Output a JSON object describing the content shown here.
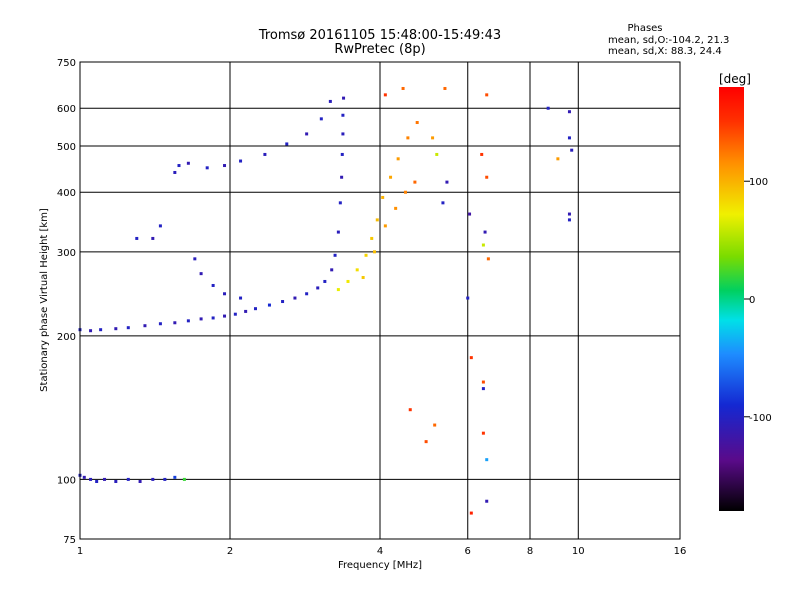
{
  "chart_data": {
    "type": "scatter",
    "title": "Tromsø 20161105 15:48:00-15:49:43",
    "subtitle": "RwPretec (8p)",
    "xlabel": "Frequency [MHz]",
    "ylabel": "Stationary phase Virtual Height [km]",
    "x_scale": "log",
    "y_scale": "log",
    "xlim": [
      1,
      16
    ],
    "ylim": [
      75,
      750
    ],
    "x_ticks": [
      1,
      2,
      4,
      6,
      8,
      10,
      16
    ],
    "y_ticks": [
      75,
      100,
      200,
      300,
      400,
      500,
      600,
      750
    ],
    "x_gridlines": [
      2,
      4,
      6,
      8,
      10
    ],
    "y_gridlines": [
      100,
      200,
      300,
      400,
      500,
      600
    ],
    "grid": true,
    "phase_box": {
      "heading": "Phases",
      "line1": "mean, sd,O:-104.2, 21.3",
      "line2": "mean, sd,X:  88.3, 24.4"
    },
    "colorbar": {
      "label": "[deg]",
      "ticks": [
        100,
        0,
        -100
      ],
      "range": [
        -180,
        180
      ]
    },
    "series": [
      {
        "points": [
          [
            1.0,
            102,
            -100
          ],
          [
            1.02,
            101,
            -110
          ],
          [
            1.05,
            100,
            -105
          ],
          [
            1.08,
            99,
            -100
          ],
          [
            1.12,
            100,
            -110
          ],
          [
            1.18,
            99,
            -105
          ],
          [
            1.25,
            100,
            -100
          ],
          [
            1.32,
            99,
            -110
          ],
          [
            1.4,
            100,
            -105
          ],
          [
            1.48,
            100,
            -100
          ],
          [
            1.55,
            101,
            -80
          ],
          [
            1.62,
            100,
            20
          ],
          [
            1.0,
            206,
            -100
          ],
          [
            1.05,
            205,
            -110
          ],
          [
            1.1,
            206,
            -100
          ],
          [
            1.18,
            207,
            -110
          ],
          [
            1.25,
            208,
            -100
          ],
          [
            1.35,
            210,
            -110
          ],
          [
            1.45,
            212,
            -100
          ],
          [
            1.55,
            213,
            -110
          ],
          [
            1.65,
            215,
            -100
          ],
          [
            1.75,
            217,
            -110
          ],
          [
            1.85,
            218,
            -100
          ],
          [
            1.95,
            220,
            -110
          ],
          [
            2.05,
            222,
            -100
          ],
          [
            2.15,
            225,
            -110
          ],
          [
            2.25,
            228,
            -100
          ],
          [
            2.4,
            232,
            -90
          ],
          [
            2.55,
            236,
            -100
          ],
          [
            2.7,
            240,
            -110
          ],
          [
            2.85,
            245,
            -100
          ],
          [
            3.0,
            252,
            -105
          ],
          [
            3.1,
            260,
            -100
          ],
          [
            3.2,
            275,
            -110
          ],
          [
            3.25,
            295,
            -100
          ],
          [
            3.3,
            330,
            -105
          ],
          [
            3.33,
            380,
            -100
          ],
          [
            3.35,
            430,
            -110
          ],
          [
            3.36,
            480,
            -100
          ],
          [
            3.37,
            530,
            -105
          ],
          [
            3.37,
            580,
            -100
          ],
          [
            3.38,
            630,
            -110
          ],
          [
            3.18,
            620,
            -105
          ],
          [
            3.05,
            570,
            -100
          ],
          [
            2.85,
            530,
            -110
          ],
          [
            2.6,
            505,
            -100
          ],
          [
            2.35,
            480,
            -105
          ],
          [
            2.1,
            465,
            -100
          ],
          [
            1.95,
            455,
            -110
          ],
          [
            1.8,
            450,
            -100
          ],
          [
            1.65,
            460,
            -110
          ],
          [
            1.58,
            455,
            -100
          ],
          [
            1.55,
            440,
            -105
          ],
          [
            3.3,
            250,
            70
          ],
          [
            3.45,
            260,
            75
          ],
          [
            3.6,
            275,
            80
          ],
          [
            3.75,
            295,
            85
          ],
          [
            3.85,
            320,
            90
          ],
          [
            3.95,
            350,
            95
          ],
          [
            4.05,
            390,
            100
          ],
          [
            4.2,
            430,
            105
          ],
          [
            4.35,
            470,
            110
          ],
          [
            4.55,
            520,
            120
          ],
          [
            4.75,
            560,
            125
          ],
          [
            3.7,
            265,
            90
          ],
          [
            3.9,
            300,
            95
          ],
          [
            4.1,
            340,
            110
          ],
          [
            4.3,
            370,
            115
          ],
          [
            4.5,
            400,
            120
          ],
          [
            4.7,
            420,
            130
          ],
          [
            4.1,
            640,
            150
          ],
          [
            4.45,
            660,
            130
          ],
          [
            5.1,
            520,
            110
          ],
          [
            5.4,
            660,
            130
          ],
          [
            5.2,
            480,
            60
          ],
          [
            5.35,
            380,
            -100
          ],
          [
            5.45,
            420,
            -110
          ],
          [
            6.05,
            360,
            -120
          ],
          [
            6.4,
            480,
            150
          ],
          [
            6.55,
            430,
            140
          ],
          [
            6.5,
            330,
            -110
          ],
          [
            6.45,
            310,
            60
          ],
          [
            6.6,
            290,
            130
          ],
          [
            6.0,
            240,
            -100
          ],
          [
            6.55,
            640,
            140
          ],
          [
            6.1,
            180,
            150
          ],
          [
            6.45,
            160,
            140
          ],
          [
            6.45,
            155,
            -100
          ],
          [
            6.45,
            125,
            150
          ],
          [
            6.55,
            110,
            -40
          ],
          [
            6.55,
            90,
            -110
          ],
          [
            6.1,
            85,
            160
          ],
          [
            4.6,
            140,
            150
          ],
          [
            4.95,
            120,
            140
          ],
          [
            5.15,
            130,
            130
          ],
          [
            8.7,
            600,
            -100
          ],
          [
            9.1,
            470,
            110
          ],
          [
            9.6,
            590,
            -110
          ],
          [
            9.6,
            520,
            -100
          ],
          [
            9.6,
            360,
            -110
          ],
          [
            9.6,
            350,
            -100
          ],
          [
            9.7,
            490,
            -105
          ],
          [
            1.45,
            340,
            -100
          ],
          [
            1.4,
            320,
            -110
          ],
          [
            1.3,
            320,
            -100
          ],
          [
            1.7,
            290,
            -105
          ],
          [
            1.75,
            270,
            -110
          ],
          [
            1.85,
            255,
            -100
          ],
          [
            1.95,
            245,
            -105
          ],
          [
            2.1,
            240,
            -100
          ]
        ]
      }
    ]
  }
}
